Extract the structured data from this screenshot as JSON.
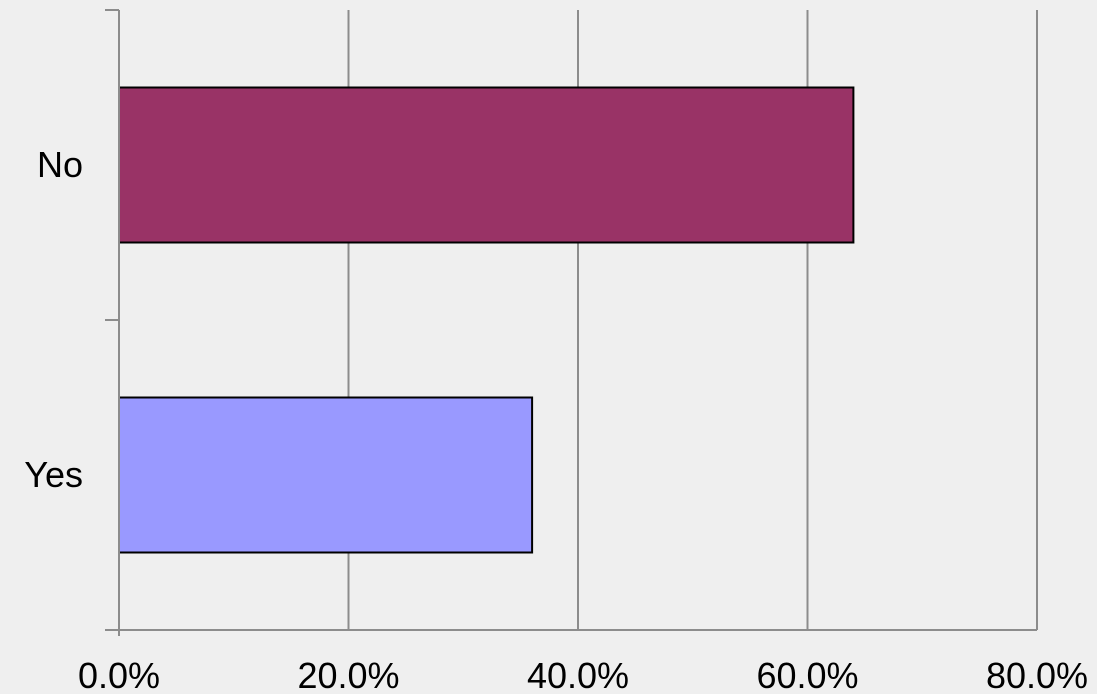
{
  "chart_data": {
    "type": "bar",
    "orientation": "horizontal",
    "categories": [
      "No",
      "Yes"
    ],
    "values": [
      64.0,
      36.0
    ],
    "bar_colors": [
      "#993366",
      "#9999ff"
    ],
    "xlim": [
      0,
      80
    ],
    "xticks": [
      "0.0%",
      "20.0%",
      "40.0%",
      "60.0%",
      "80.0%"
    ],
    "x_tick_values": [
      0,
      20,
      40,
      60,
      80
    ],
    "grid": true,
    "legend": "none",
    "title": "",
    "xlabel": "",
    "ylabel": ""
  },
  "colors": {
    "background": "#efefef",
    "grid": "#8c8c8c",
    "bar_border": "#000000"
  }
}
